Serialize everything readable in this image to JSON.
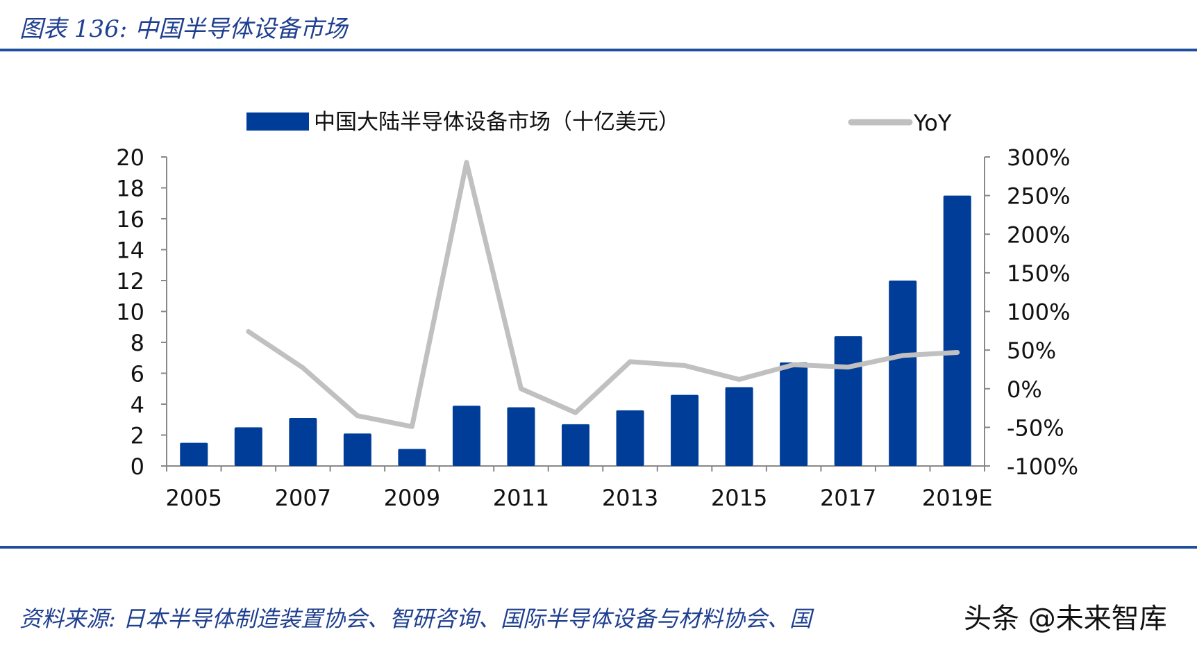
{
  "figure": {
    "title": "图表 136:  中国半导体设备市场",
    "source": "资料来源:  日本半导体制造装置协会、智研咨询、国际半导体设备与材料协会、国",
    "watermark": "头条 @未来智库"
  },
  "chart_data": {
    "type": "bar",
    "categories": [
      "2005",
      "2006",
      "2007",
      "2008",
      "2009",
      "2010",
      "2011",
      "2012",
      "2013",
      "2014",
      "2015",
      "2016",
      "2017",
      "2018",
      "2019E"
    ],
    "x_tick_labels": [
      "2005",
      "",
      "2007",
      "",
      "2009",
      "",
      "2011",
      "",
      "2013",
      "",
      "2015",
      "",
      "2017",
      "",
      "2019E"
    ],
    "series": [
      {
        "name": "中国大陆半导体设备市场（十亿美元）",
        "type": "bar",
        "axis": "left",
        "color": "#003d99",
        "values": [
          1.5,
          2.5,
          3.1,
          2.1,
          1.1,
          3.9,
          3.8,
          2.7,
          3.6,
          4.6,
          5.1,
          6.7,
          8.4,
          12.0,
          17.5
        ]
      },
      {
        "name": "YoY",
        "type": "line",
        "axis": "right",
        "color": "#c0c0c0",
        "values": [
          null,
          74,
          27,
          -35,
          -49,
          293,
          0,
          -31,
          35,
          30,
          12,
          31,
          28,
          43,
          47
        ]
      }
    ],
    "y_left": {
      "min": 0,
      "max": 20,
      "ticks": [
        "0",
        "2",
        "4",
        "6",
        "8",
        "10",
        "12",
        "14",
        "16",
        "18",
        "20"
      ]
    },
    "y_right": {
      "min": -100,
      "max": 300,
      "ticks": [
        "-100%",
        "-50%",
        "0%",
        "50%",
        "100%",
        "150%",
        "200%",
        "250%",
        "300%"
      ]
    },
    "legend_position": "top",
    "grid": false
  }
}
